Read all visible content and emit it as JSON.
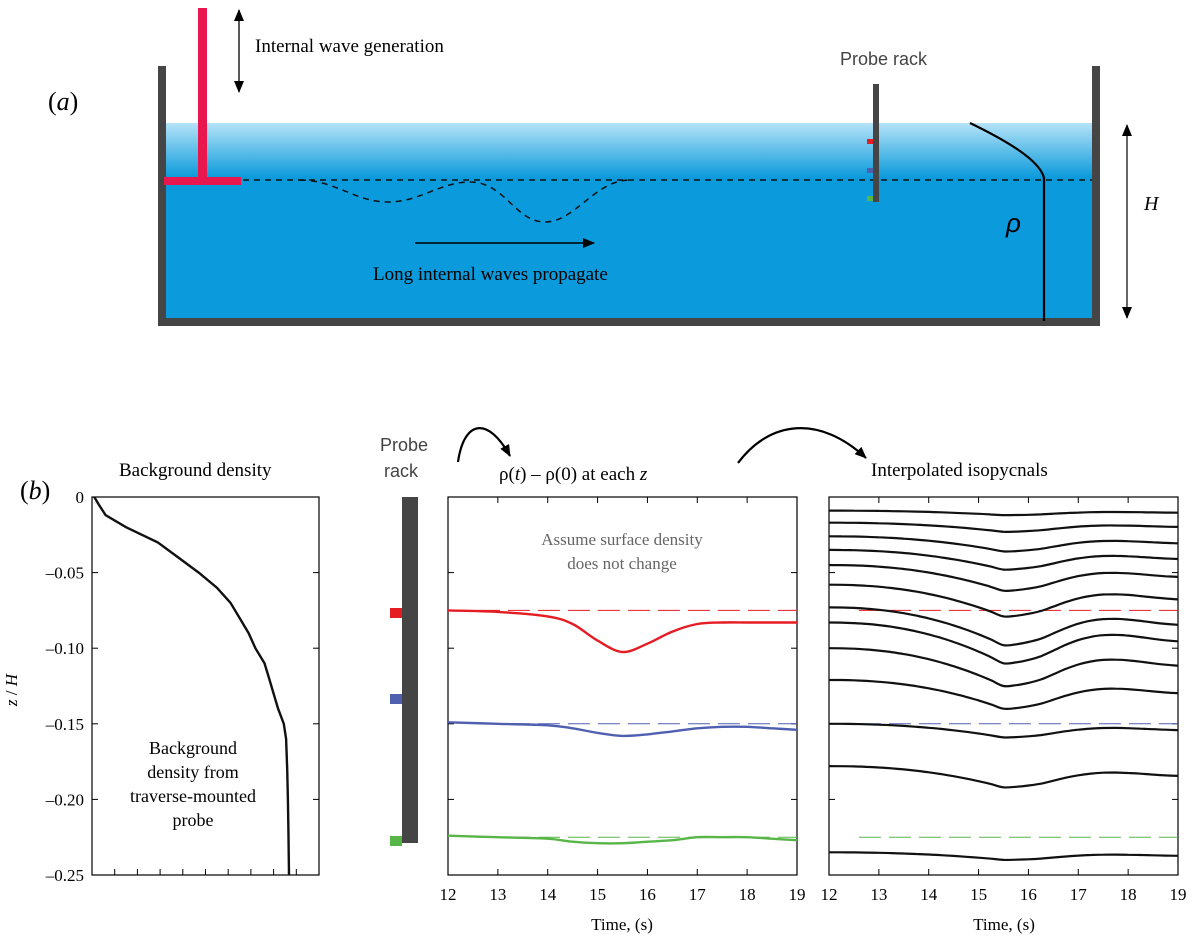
{
  "panel_a": {
    "label": "(a)",
    "generation_label": "Internal wave generation",
    "probe_rack_label": "Probe rack",
    "propagate_label": "Long internal waves propagate",
    "rho_label": "ρ",
    "depth_label": "H"
  },
  "panel_b": {
    "label": "(b)",
    "background_title": "Background density",
    "probe_rack_label_1": "Probe",
    "probe_rack_label_2": "rack",
    "delta_title": "ρ(t) – ρ(0)  at each z",
    "delta_title_parts": [
      "ρ(",
      "t",
      ") – ρ(0)  at each ",
      "z"
    ],
    "iso_title": "Interpolated isopycnals",
    "surface_note_1": "Assume surface density",
    "surface_note_2": "does not change",
    "bg_note": [
      "Background",
      "density from",
      "traverse-mounted",
      "probe"
    ]
  },
  "colors": {
    "water": "#0b9adb",
    "water_surface": "#b5e3f8",
    "tank": "#454545",
    "paddle": "#e8174e",
    "probe_red": "#e51c23",
    "probe_blue": "#5060b0",
    "probe_green": "#58b548"
  },
  "chart_data": [
    {
      "type": "line",
      "title": "Background density",
      "xlabel": "",
      "ylabel": "z / H",
      "ylim": [
        -0.25,
        0
      ],
      "yticks": [
        "0",
        "–0.05",
        "–0.10",
        "–0.15",
        "–0.20",
        "–0.25"
      ],
      "series": [
        {
          "z": [
            0,
            -0.005,
            -0.012,
            -0.02,
            -0.03,
            -0.04,
            -0.05,
            -0.06,
            -0.07,
            -0.08,
            -0.09,
            -0.1,
            -0.11,
            -0.12,
            -0.13,
            -0.14,
            -0.15,
            -0.16,
            -0.18,
            -0.2,
            -0.22,
            -0.25
          ],
          "rho": [
            0.01,
            0.03,
            0.06,
            0.15,
            0.29,
            0.38,
            0.47,
            0.55,
            0.61,
            0.65,
            0.69,
            0.72,
            0.76,
            0.78,
            0.8,
            0.82,
            0.845,
            0.855,
            0.86,
            0.863,
            0.865,
            0.868
          ]
        }
      ]
    },
    {
      "type": "line",
      "title": "ρ(t) – ρ(0)  at each z",
      "xlabel": "Time, (s)",
      "xlim": [
        12,
        19
      ],
      "ylim": [
        -0.25,
        0
      ],
      "xticks": [
        "12",
        "13",
        "14",
        "15",
        "16",
        "17",
        "18",
        "19"
      ],
      "reference_levels": [
        -0.075,
        -0.15,
        -0.225
      ],
      "series": [
        {
          "name": "red probe",
          "x": [
            12,
            13,
            14,
            14.5,
            15,
            15.5,
            16,
            16.5,
            17,
            17.5,
            18,
            18.5,
            19
          ],
          "y": [
            -0.075,
            -0.076,
            -0.079,
            -0.084,
            -0.095,
            -0.1025,
            -0.097,
            -0.089,
            -0.084,
            -0.083,
            -0.083,
            -0.083,
            -0.083
          ]
        },
        {
          "name": "blue probe",
          "x": [
            12,
            13,
            14,
            14.5,
            15,
            15.5,
            16,
            16.5,
            17,
            17.5,
            18,
            18.5,
            19
          ],
          "y": [
            -0.149,
            -0.15,
            -0.151,
            -0.153,
            -0.156,
            -0.158,
            -0.157,
            -0.155,
            -0.153,
            -0.152,
            -0.152,
            -0.153,
            -0.154
          ]
        },
        {
          "name": "green probe",
          "x": [
            12,
            13,
            14,
            14.5,
            15,
            15.5,
            16,
            16.5,
            17,
            17.5,
            18,
            18.5,
            19
          ],
          "y": [
            -0.224,
            -0.225,
            -0.226,
            -0.228,
            -0.229,
            -0.229,
            -0.228,
            -0.227,
            -0.225,
            -0.225,
            -0.225,
            -0.226,
            -0.227
          ]
        }
      ]
    },
    {
      "type": "line",
      "title": "Interpolated isopycnals",
      "xlabel": "Time, (s)",
      "xlim": [
        12,
        19
      ],
      "ylim": [
        -0.25,
        0
      ],
      "xticks": [
        "12",
        "13",
        "14",
        "15",
        "16",
        "17",
        "18",
        "19"
      ],
      "reference_levels": [
        -0.075,
        -0.15,
        -0.225
      ],
      "isopycnal_base_levels": [
        -0.009,
        -0.017,
        -0.026,
        -0.035,
        -0.045,
        -0.058,
        -0.073,
        -0.083,
        -0.1,
        -0.121,
        -0.15,
        -0.178,
        -0.235
      ],
      "isopycnal_max_dip": [
        0.003,
        0.006,
        0.01,
        0.013,
        0.017,
        0.021,
        0.025,
        0.027,
        0.025,
        0.019,
        0.009,
        0.014,
        0.005
      ]
    }
  ]
}
